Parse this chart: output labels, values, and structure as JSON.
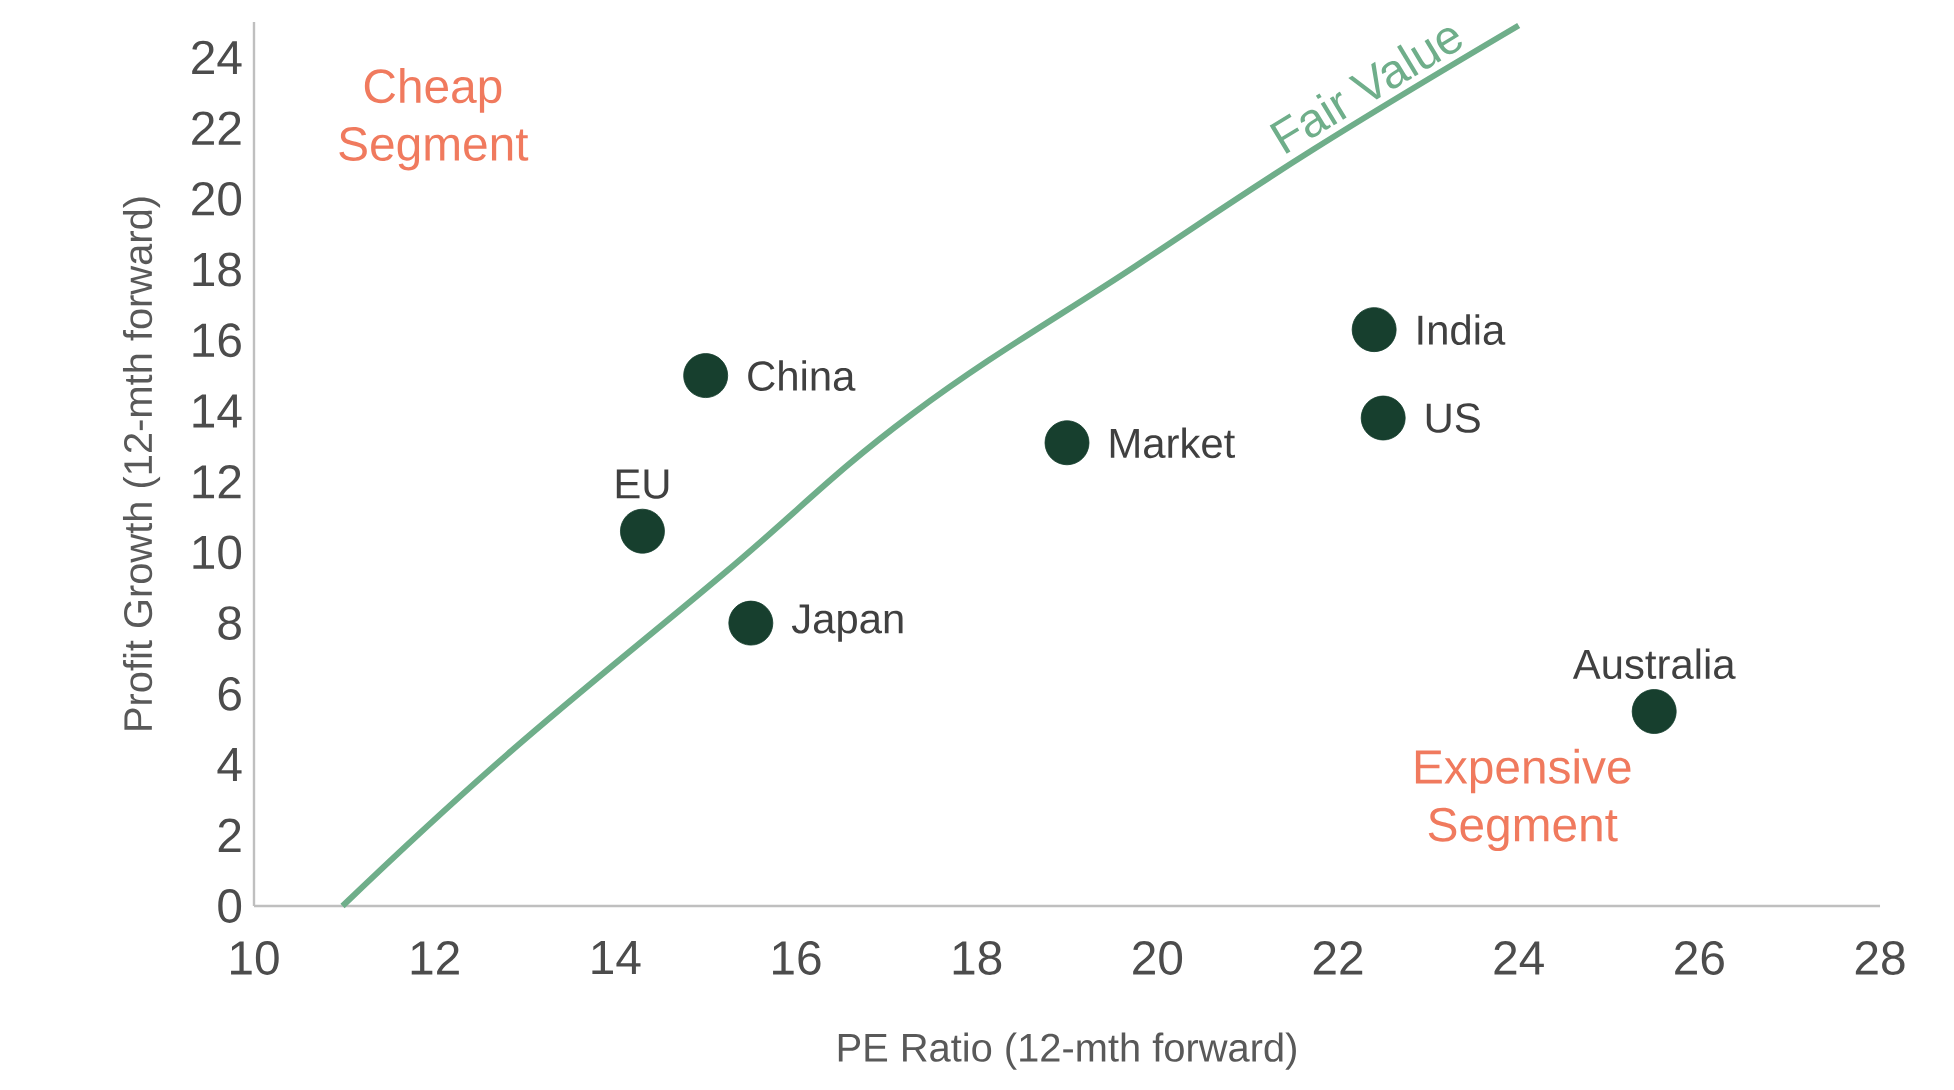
{
  "chart_data": {
    "type": "scatter",
    "xlabel": "PE Ratio (12-mth forward)",
    "ylabel": "Profit Growth (12-mth forward)",
    "xlim": [
      10,
      28
    ],
    "ylim": [
      0,
      25
    ],
    "xticks": [
      10,
      12,
      14,
      16,
      18,
      20,
      22,
      24,
      26,
      28
    ],
    "yticks": [
      0,
      2,
      4,
      6,
      8,
      10,
      12,
      14,
      16,
      18,
      20,
      22,
      24
    ],
    "marker": "circle",
    "grid": false,
    "annotations": [
      "Cheap Segment",
      "Expensive Segment",
      {
        "text": "China",
        "x": 15.0,
        "y": 15.0
      },
      {
        "text": "EU",
        "x": 14.3,
        "y": 10.6
      },
      {
        "text": "Japan",
        "x": 15.5,
        "y": 8.0
      },
      {
        "text": "Market",
        "x": 19.0,
        "y": 13.1
      },
      {
        "text": "India",
        "x": 22.4,
        "y": 16.3
      },
      {
        "text": "US",
        "x": 22.5,
        "y": 13.8
      },
      {
        "text": "Australia",
        "x": 25.5,
        "y": 5.5
      }
    ],
    "series": [
      {
        "name": "Fair Value",
        "type": "line",
        "color": "#6fae8a",
        "marker": "none",
        "x": [
          10.98,
          12.81,
          15.2,
          17.28,
          19.76,
          21.73,
          24.0
        ],
        "values": [
          0,
          4.3,
          9.4,
          13.9,
          18.1,
          21.4,
          24.9
        ]
      },
      {
        "color": "#173f2e",
        "x": [
          15.0,
          14.3,
          15.5,
          19.0,
          22.4,
          22.5,
          25.5
        ],
        "values": [
          15.0,
          10.6,
          8.0,
          13.1,
          16.3,
          13.8,
          5.5
        ]
      }
    ]
  }
}
